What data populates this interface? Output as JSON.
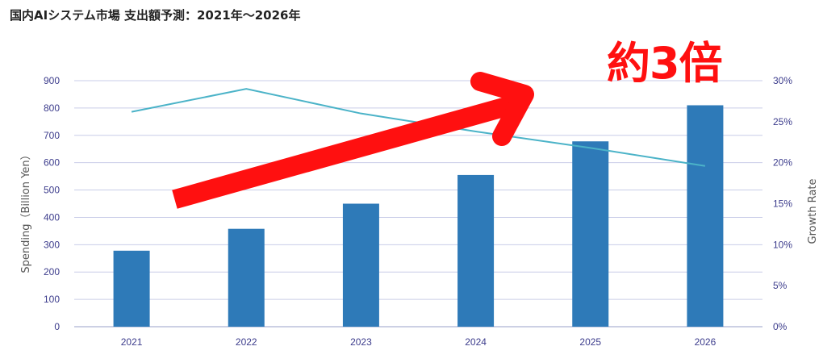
{
  "title": "国内AIシステム市場 支出額予測：2021年〜2026年",
  "annotation": "約3倍",
  "colors": {
    "bar": "#2e7ab8",
    "line": "#4bb3c8",
    "arrow": "#ff1010",
    "grid": "#c9cde8",
    "tick": "#3c3c8c"
  },
  "chart_data": {
    "type": "bar",
    "categories": [
      "2021",
      "2022",
      "2023",
      "2024",
      "2025",
      "2026"
    ],
    "series": [
      {
        "values": [
          278,
          358,
          450,
          555,
          678,
          810
        ],
        "axis": "left",
        "type": "bar"
      },
      {
        "values": [
          26.2,
          29.0,
          26.0,
          23.8,
          21.8,
          19.6
        ],
        "axis": "right",
        "type": "line"
      }
    ],
    "ylabel": "Spending（Billion Yen）",
    "ylabel_right": "Growth Rate",
    "ylim": [
      0,
      900
    ],
    "ylim_right": [
      0,
      30
    ],
    "yticks": [
      "0",
      "100",
      "200",
      "300",
      "400",
      "500",
      "600",
      "700",
      "800",
      "900"
    ],
    "yticks_right": [
      "0%",
      "5%",
      "10%",
      "15%",
      "20%",
      "25%",
      "30%"
    ],
    "grid": true
  }
}
